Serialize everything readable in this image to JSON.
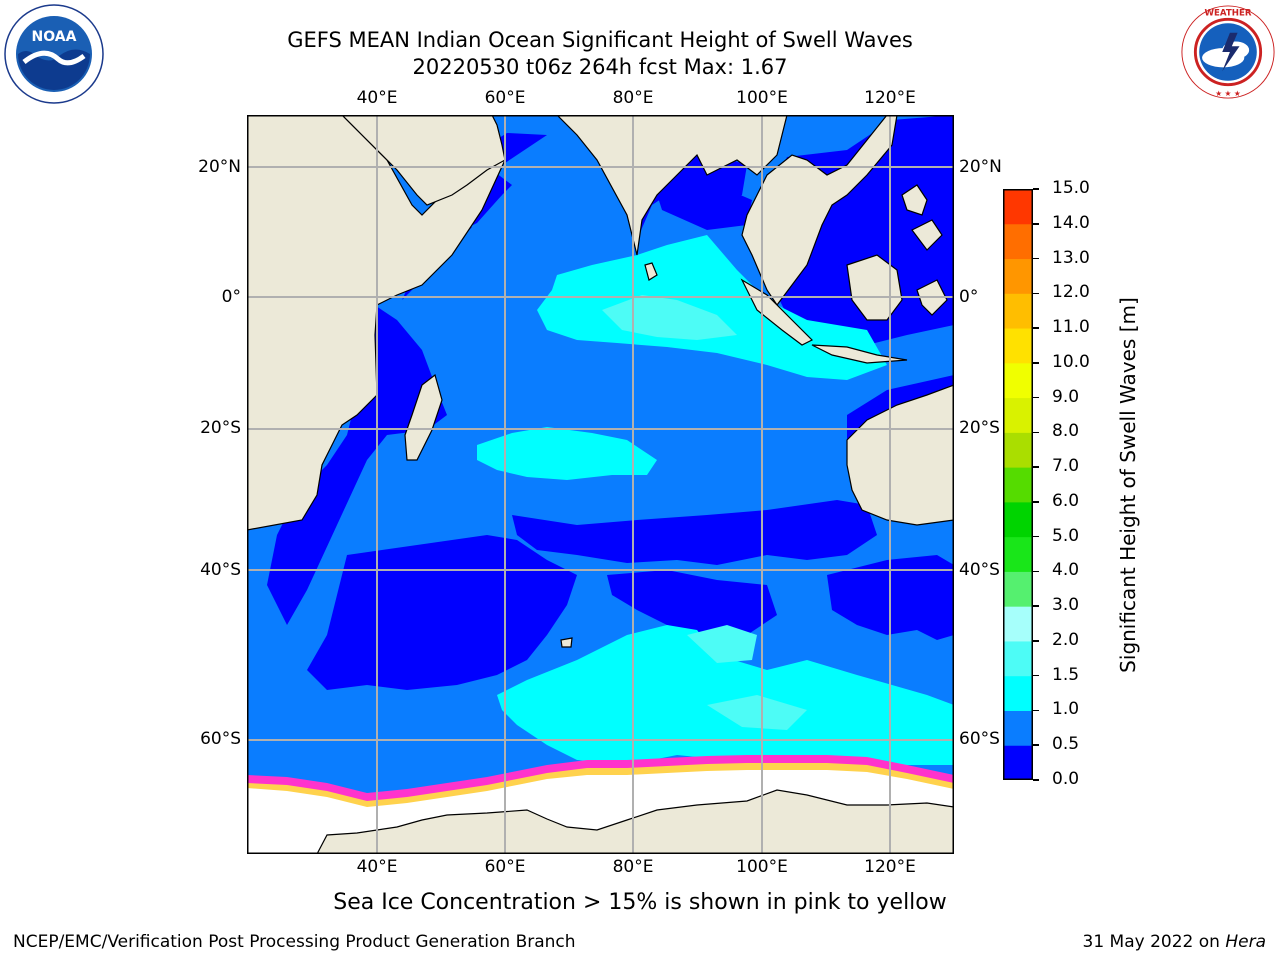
{
  "header": {
    "title_line1": "GEFS MEAN Indian Ocean Significant Height of Swell Waves",
    "title_line2": "20220530 t06z 264h fcst   Max: 1.67"
  },
  "logos": {
    "noaa": {
      "icon": "noaa-logo-icon",
      "text": "NOAA",
      "ring_text": "NATIONAL OCEANIC AND ATMOSPHERIC ADMINISTRATION · U.S. DEPARTMENT OF COMMERCE"
    },
    "nws": {
      "icon": "nws-logo-icon",
      "ring_text": "NATIONAL WEATHER SERVICE"
    }
  },
  "map": {
    "region": "Indian Ocean",
    "lon_ticks": [
      "40°E",
      "60°E",
      "80°E",
      "100°E",
      "120°E"
    ],
    "lat_ticks": [
      "20°N",
      "0°",
      "20°S",
      "40°S",
      "60°S"
    ],
    "grid": true,
    "colors": {
      "land": "#ece9d8",
      "ice_free_ocean_0_0_5": "#0000ff",
      "swell_0_5_1_0": "#0a7dff",
      "swell_1_0_1_5": "#00ffff",
      "swell_1_5_2_0": "#4dfcf6",
      "sea_ice": "#ffffff",
      "ice_edge": [
        "#ff33cc",
        "#ffb3e6",
        "#ffd24d"
      ]
    }
  },
  "colorbar": {
    "label": "Significant Height of Swell Waves [m]",
    "ticks": [
      "0.0",
      "0.5",
      "1.0",
      "1.5",
      "2.0",
      "3.0",
      "4.0",
      "5.0",
      "6.0",
      "7.0",
      "8.0",
      "9.0",
      "10.0",
      "11.0",
      "12.0",
      "13.0",
      "14.0",
      "15.0"
    ],
    "colors": [
      "#0000ff",
      "#0a7dff",
      "#00ffff",
      "#4dfcf6",
      "#a6fffb",
      "#55f06f",
      "#19e619",
      "#00d400",
      "#55dc00",
      "#aade00",
      "#d9f200",
      "#f0ff00",
      "#ffe100",
      "#ffbe00",
      "#ff9600",
      "#ff6e00",
      "#ff3700"
    ]
  },
  "caption": "Sea Ice Concentration > 15% is shown in pink to yellow",
  "footer": {
    "left": "NCEP/EMC/Verification Post Processing Product Generation Branch",
    "right_prefix": "31 May 2022 on ",
    "right_machine": "Hera"
  }
}
